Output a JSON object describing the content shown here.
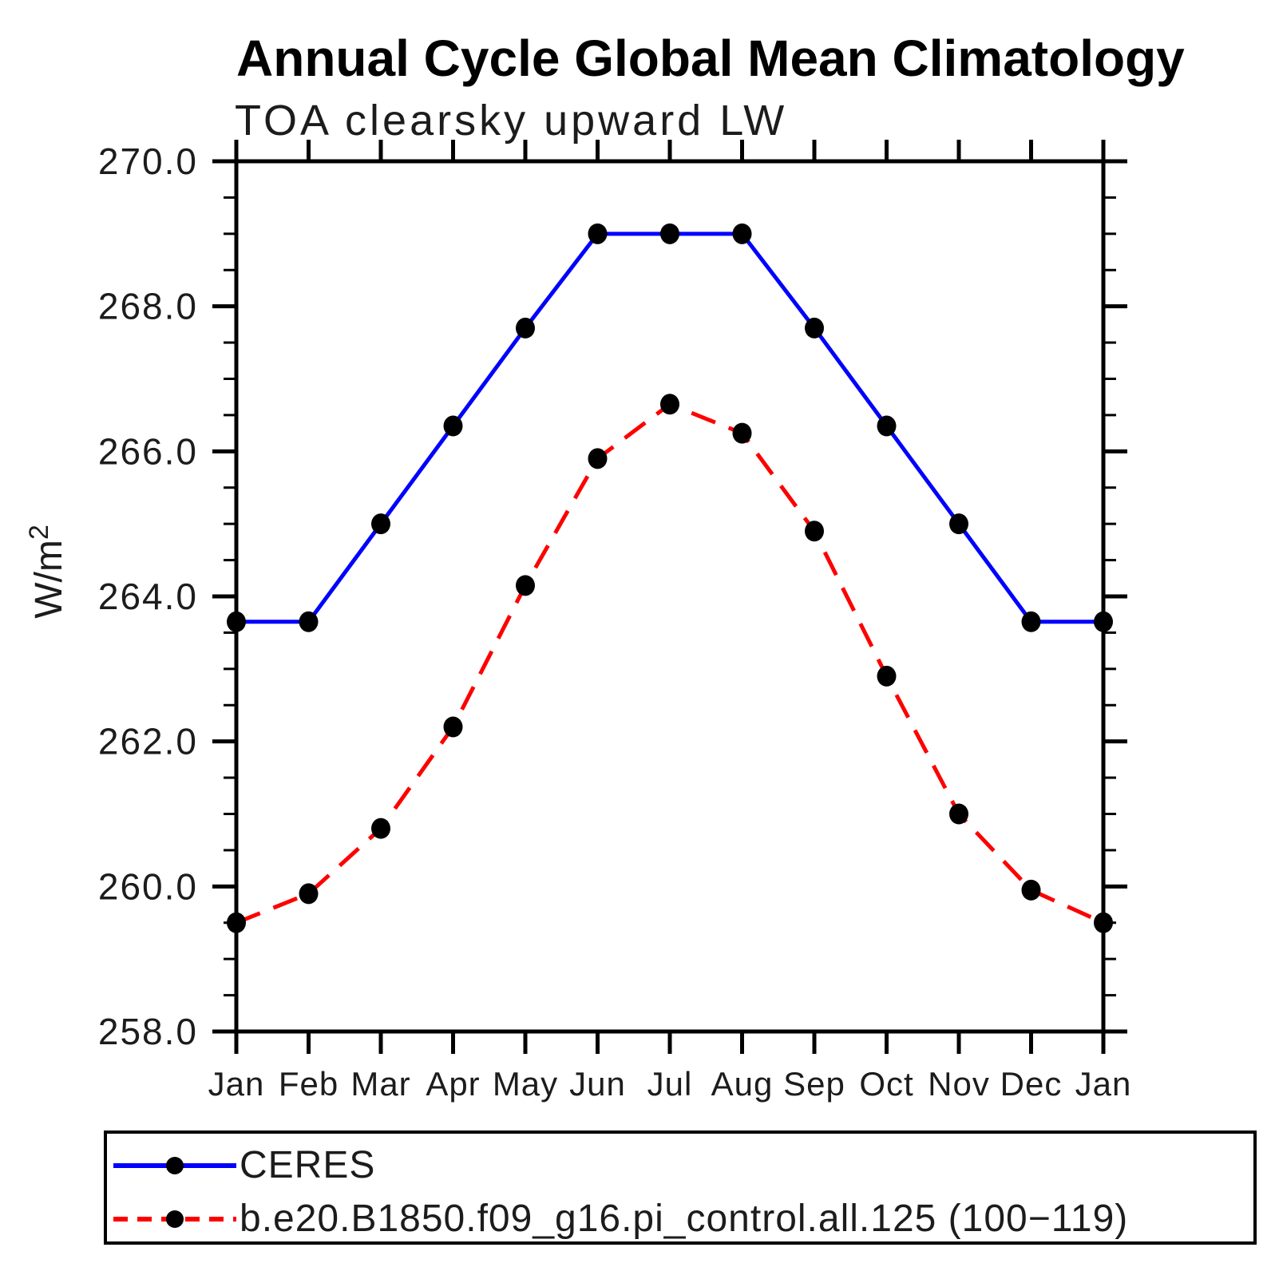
{
  "header": {
    "title": "Annual Cycle Global Mean Climatology",
    "subtitle": "TOA clearsky upward LW"
  },
  "y_axis": {
    "unit_base": "W/m",
    "unit_exponent": "2",
    "unit_label": "W/m²",
    "tick_labels": [
      "270.0",
      "268.0",
      "266.0",
      "264.0",
      "262.0",
      "260.0",
      "258.0"
    ],
    "min": 258.0,
    "max": 270.0,
    "major_step": 2.0,
    "minor_step": 0.5
  },
  "x_axis": {
    "labels": [
      "Jan",
      "Feb",
      "Mar",
      "Apr",
      "May",
      "Jun",
      "Jul",
      "Aug",
      "Sep",
      "Oct",
      "Nov",
      "Dec",
      "Jan"
    ]
  },
  "legend": {
    "entries": [
      {
        "label": "CERES",
        "color": "#0000ff",
        "style": "solid",
        "marker": "filled-circle",
        "marker_color": "#000000"
      },
      {
        "label": "b.e20.B1850.f09_g16.pi_control.all.125 (100−119)",
        "color": "#ff0000",
        "style": "dashed",
        "marker": "filled-circle",
        "marker_color": "#000000"
      }
    ]
  },
  "chart_data": {
    "type": "line",
    "title": "Annual Cycle Global Mean Climatology",
    "subtitle": "TOA clearsky upward LW",
    "xlabel": "",
    "ylabel": "W/m²",
    "ylim": [
      258.0,
      270.0
    ],
    "y_major_step": 2.0,
    "y_minor_step": 0.5,
    "grid": false,
    "legend_position": "bottom-left-box",
    "categories": [
      "Jan",
      "Feb",
      "Mar",
      "Apr",
      "May",
      "Jun",
      "Jul",
      "Aug",
      "Sep",
      "Oct",
      "Nov",
      "Dec",
      "Jan"
    ],
    "series": [
      {
        "name": "CERES",
        "color": "#0000ff",
        "line_style": "solid",
        "marker": "filled-circle",
        "marker_color": "#000000",
        "values": [
          263.65,
          263.65,
          265.0,
          266.35,
          267.7,
          269.0,
          269.0,
          269.0,
          267.7,
          266.35,
          265.0,
          263.65,
          263.65
        ]
      },
      {
        "name": "b.e20.B1850.f09_g16.pi_control.all.125 (100−119)",
        "color": "#ff0000",
        "line_style": "dashed",
        "marker": "filled-circle",
        "marker_color": "#000000",
        "values": [
          259.5,
          259.9,
          260.8,
          262.2,
          264.15,
          265.9,
          266.65,
          266.25,
          264.9,
          262.9,
          261.0,
          259.95,
          259.5
        ]
      }
    ]
  }
}
